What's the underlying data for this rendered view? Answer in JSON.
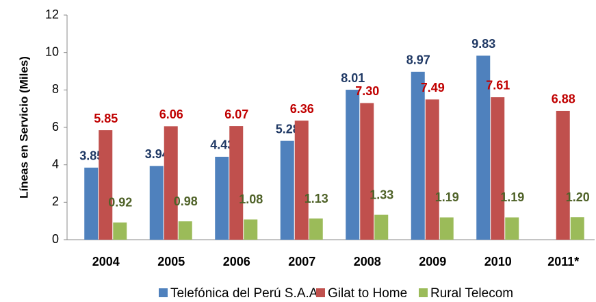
{
  "chart_data": {
    "type": "bar",
    "y_label": "Líneas en Servicio (Miles)",
    "categories": [
      "2004",
      "2005",
      "2006",
      "2007",
      "2008",
      "2009",
      "2010",
      "2011*"
    ],
    "series": [
      {
        "name": "Telefónica del Perú S.A.A",
        "color": "#4f81bd",
        "label_color": "#1f3864",
        "values": [
          3.85,
          3.94,
          4.43,
          5.28,
          8.01,
          8.97,
          9.83,
          null
        ],
        "value_labels": [
          "3.85",
          "3.94",
          "4.43",
          "5.28",
          "8.01",
          "8.97",
          "9.83",
          null
        ]
      },
      {
        "name": "Gilat to Home",
        "color": "#c0504d",
        "label_color": "#c00000",
        "values": [
          5.85,
          6.06,
          6.07,
          6.36,
          7.3,
          7.49,
          7.61,
          6.88
        ],
        "value_labels": [
          "5.85",
          "6.06",
          "6.07",
          "6.36",
          "7.30",
          "7.49",
          "7.61",
          "6.88"
        ]
      },
      {
        "name": "Rural Telecom",
        "color": "#9bbb59",
        "label_color": "#4f6228",
        "values": [
          0.92,
          0.98,
          1.08,
          1.13,
          1.33,
          1.19,
          1.19,
          1.2
        ],
        "value_labels": [
          "0.92",
          "0.98",
          "1.08",
          "1.13",
          "1.33",
          "1.19",
          "1.19",
          "1.20"
        ]
      }
    ],
    "ylim": [
      0,
      12
    ],
    "yticks": [
      0,
      2,
      4,
      6,
      8,
      10,
      12
    ],
    "grid": false,
    "legend": "bottom"
  }
}
